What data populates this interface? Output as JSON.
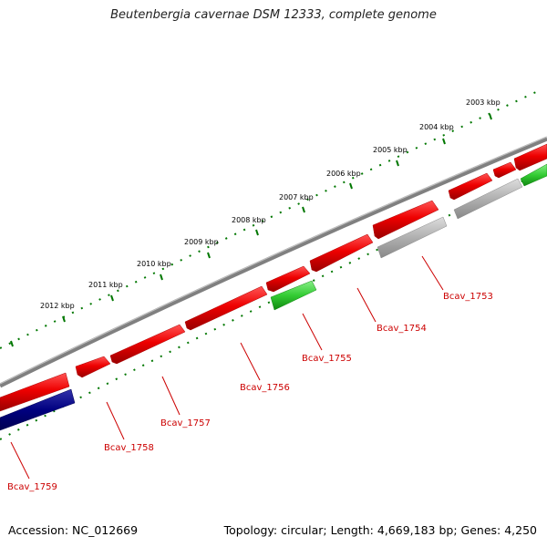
{
  "title": "Beutenbergia cavernae DSM 12333, complete genome",
  "footer": {
    "accession": "Accession: NC_012669",
    "summary": "Topology: circular; Length: 4,669,183 bp; Genes: 4,250"
  },
  "scale_labels": [
    "2003 kbp",
    "2004 kbp",
    "2005 kbp",
    "2006 kbp",
    "2007 kbp",
    "2008 kbp",
    "2009 kbp",
    "2010 kbp",
    "2011 kbp",
    "2012 kbp"
  ],
  "gene_labels": [
    "Bcav_1753",
    "Bcav_1754",
    "Bcav_1755",
    "Bcav_1756",
    "Bcav_1757",
    "Bcav_1758",
    "Bcav_1759"
  ],
  "colors": {
    "backbone": "#808080",
    "gene_red": "#ee0000",
    "gene_green": "#33cc33",
    "gene_gray": "#b0b0b0",
    "gene_navy": "#000080",
    "tick_green": "#007700",
    "label_red": "#cc0000"
  }
}
